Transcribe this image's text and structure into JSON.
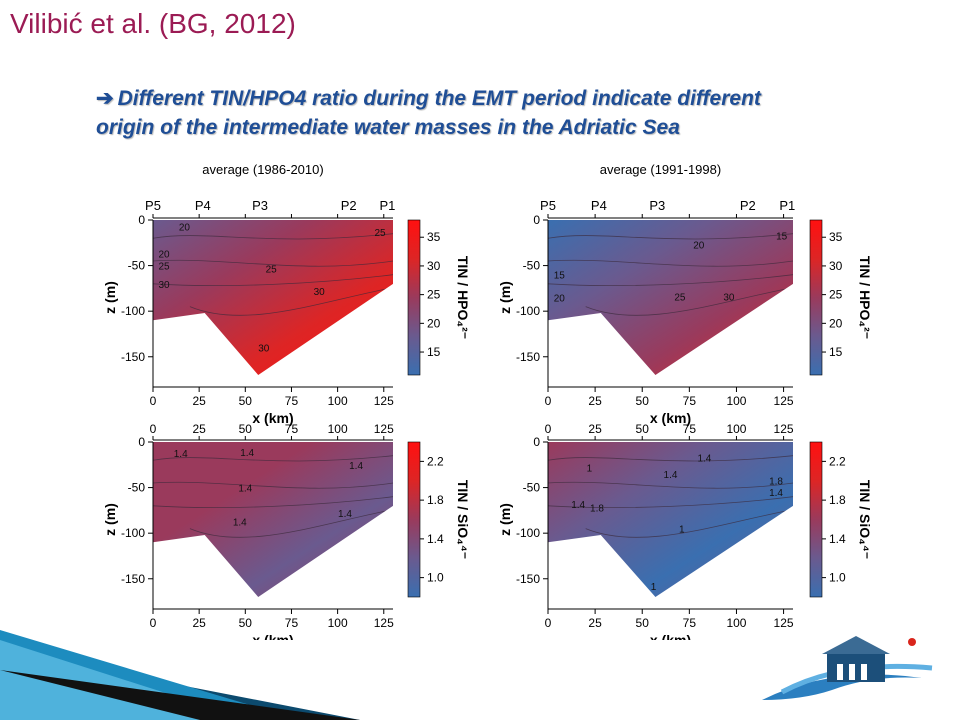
{
  "slide": {
    "title": "Vilibić et al. (BG, 2012)",
    "subtitle_arrow": "➔",
    "subtitle_line1": "Different TIN/HPO4 ratio during the EMT period indicate different",
    "subtitle_line2": "origin of the intermediate water masses in the Adriatic Sea"
  },
  "chart_data": [
    {
      "type": "heatmap",
      "title": "average (1986-2010)",
      "xlabel": "x (km)",
      "ylabel": "z (m)",
      "xlim": [
        0,
        130
      ],
      "ylim": [
        -170,
        0
      ],
      "xticks": [
        0,
        25,
        50,
        75,
        100,
        125
      ],
      "yticks": [
        0,
        -50,
        -100,
        -150
      ],
      "stations": [
        "P5",
        "P4",
        "P3",
        "P2",
        "P1"
      ],
      "station_x": [
        0,
        27,
        58,
        106,
        127
      ],
      "colorbar": {
        "label": "TIN / HPO₄²⁻",
        "ticks": [
          15,
          20,
          25,
          30,
          35
        ],
        "range": [
          11,
          38
        ]
      },
      "contour_labels": [
        {
          "text": "20",
          "x": 17,
          "z": -7
        },
        {
          "text": "25",
          "x": 123,
          "z": -13
        },
        {
          "text": "20",
          "x": 6,
          "z": -37
        },
        {
          "text": "25",
          "x": 6,
          "z": -50
        },
        {
          "text": "25",
          "x": 64,
          "z": -53
        },
        {
          "text": "30",
          "x": 6,
          "z": -70
        },
        {
          "text": "30",
          "x": 90,
          "z": -78
        },
        {
          "text": "30",
          "x": 60,
          "z": -140
        }
      ]
    },
    {
      "type": "heatmap",
      "title": "average (1991-1998)",
      "xlabel": "x (km)",
      "ylabel": "z (m)",
      "xlim": [
        0,
        130
      ],
      "ylim": [
        -170,
        0
      ],
      "xticks": [
        0,
        25,
        50,
        75,
        100,
        125
      ],
      "yticks": [
        0,
        -50,
        -100,
        -150
      ],
      "stations": [
        "P5",
        "P4",
        "P3",
        "P2",
        "P1"
      ],
      "station_x": [
        0,
        27,
        58,
        106,
        127
      ],
      "colorbar": {
        "label": "TIN / HPO₄²⁻",
        "ticks": [
          15,
          20,
          25,
          30,
          35
        ],
        "range": [
          11,
          38
        ]
      },
      "contour_labels": [
        {
          "text": "20",
          "x": 80,
          "z": -27
        },
        {
          "text": "15",
          "x": 124,
          "z": -17
        },
        {
          "text": "15",
          "x": 6,
          "z": -60
        },
        {
          "text": "20",
          "x": 6,
          "z": -85
        },
        {
          "text": "25",
          "x": 70,
          "z": -84
        },
        {
          "text": "30",
          "x": 96,
          "z": -84
        }
      ]
    },
    {
      "type": "heatmap",
      "title": "",
      "xlabel": "x (km)",
      "ylabel": "z (m)",
      "xlim": [
        0,
        130
      ],
      "ylim": [
        -170,
        0
      ],
      "xticks": [
        0,
        25,
        50,
        75,
        100,
        125
      ],
      "yticks": [
        0,
        -50,
        -100,
        -150
      ],
      "colorbar": {
        "label": "TIN / SiO₄⁴⁻",
        "ticks": [
          1.0,
          1.4,
          1.8,
          2.2
        ],
        "tick_labels": [
          "1.0",
          "1.4",
          "1.8",
          "2.2"
        ],
        "range": [
          0.8,
          2.4
        ]
      },
      "contour_labels": [
        {
          "text": "1.4",
          "x": 15,
          "z": -12
        },
        {
          "text": "1.4",
          "x": 51,
          "z": -11
        },
        {
          "text": "1.4",
          "x": 110,
          "z": -25
        },
        {
          "text": "1.4",
          "x": 50,
          "z": -50
        },
        {
          "text": "1.4",
          "x": 47,
          "z": -87
        },
        {
          "text": "1.4",
          "x": 104,
          "z": -78
        }
      ]
    },
    {
      "type": "heatmap",
      "title": "",
      "xlabel": "x (km)",
      "ylabel": "z (m)",
      "xlim": [
        0,
        130
      ],
      "ylim": [
        -170,
        0
      ],
      "xticks": [
        0,
        25,
        50,
        75,
        100,
        125
      ],
      "yticks": [
        0,
        -50,
        -100,
        -150
      ],
      "colorbar": {
        "label": "TIN / SiO₄⁴⁻",
        "ticks": [
          1.0,
          1.4,
          1.8,
          2.2
        ],
        "tick_labels": [
          "1.0",
          "1.4",
          "1.8",
          "2.2"
        ],
        "range": [
          0.8,
          2.4
        ]
      },
      "contour_labels": [
        {
          "text": "1",
          "x": 22,
          "z": -28
        },
        {
          "text": "1.4",
          "x": 83,
          "z": -17
        },
        {
          "text": "1.4",
          "x": 65,
          "z": -35
        },
        {
          "text": "1.8",
          "x": 121,
          "z": -42
        },
        {
          "text": "1.4",
          "x": 121,
          "z": -55
        },
        {
          "text": "1.4",
          "x": 16,
          "z": -68
        },
        {
          "text": "1.8",
          "x": 26,
          "z": -72
        },
        {
          "text": "1",
          "x": 71,
          "z": -95
        },
        {
          "text": "1",
          "x": 56,
          "z": -158
        }
      ]
    }
  ],
  "colors": {
    "title": "#9b1b54",
    "subtitle": "#1f4e96",
    "colormap": [
      "#3a6fb0",
      "#6a5a8f",
      "#9a3a5c",
      "#dd2525",
      "#ff1010"
    ]
  },
  "logo": {
    "icon": "fish-house-logo"
  }
}
